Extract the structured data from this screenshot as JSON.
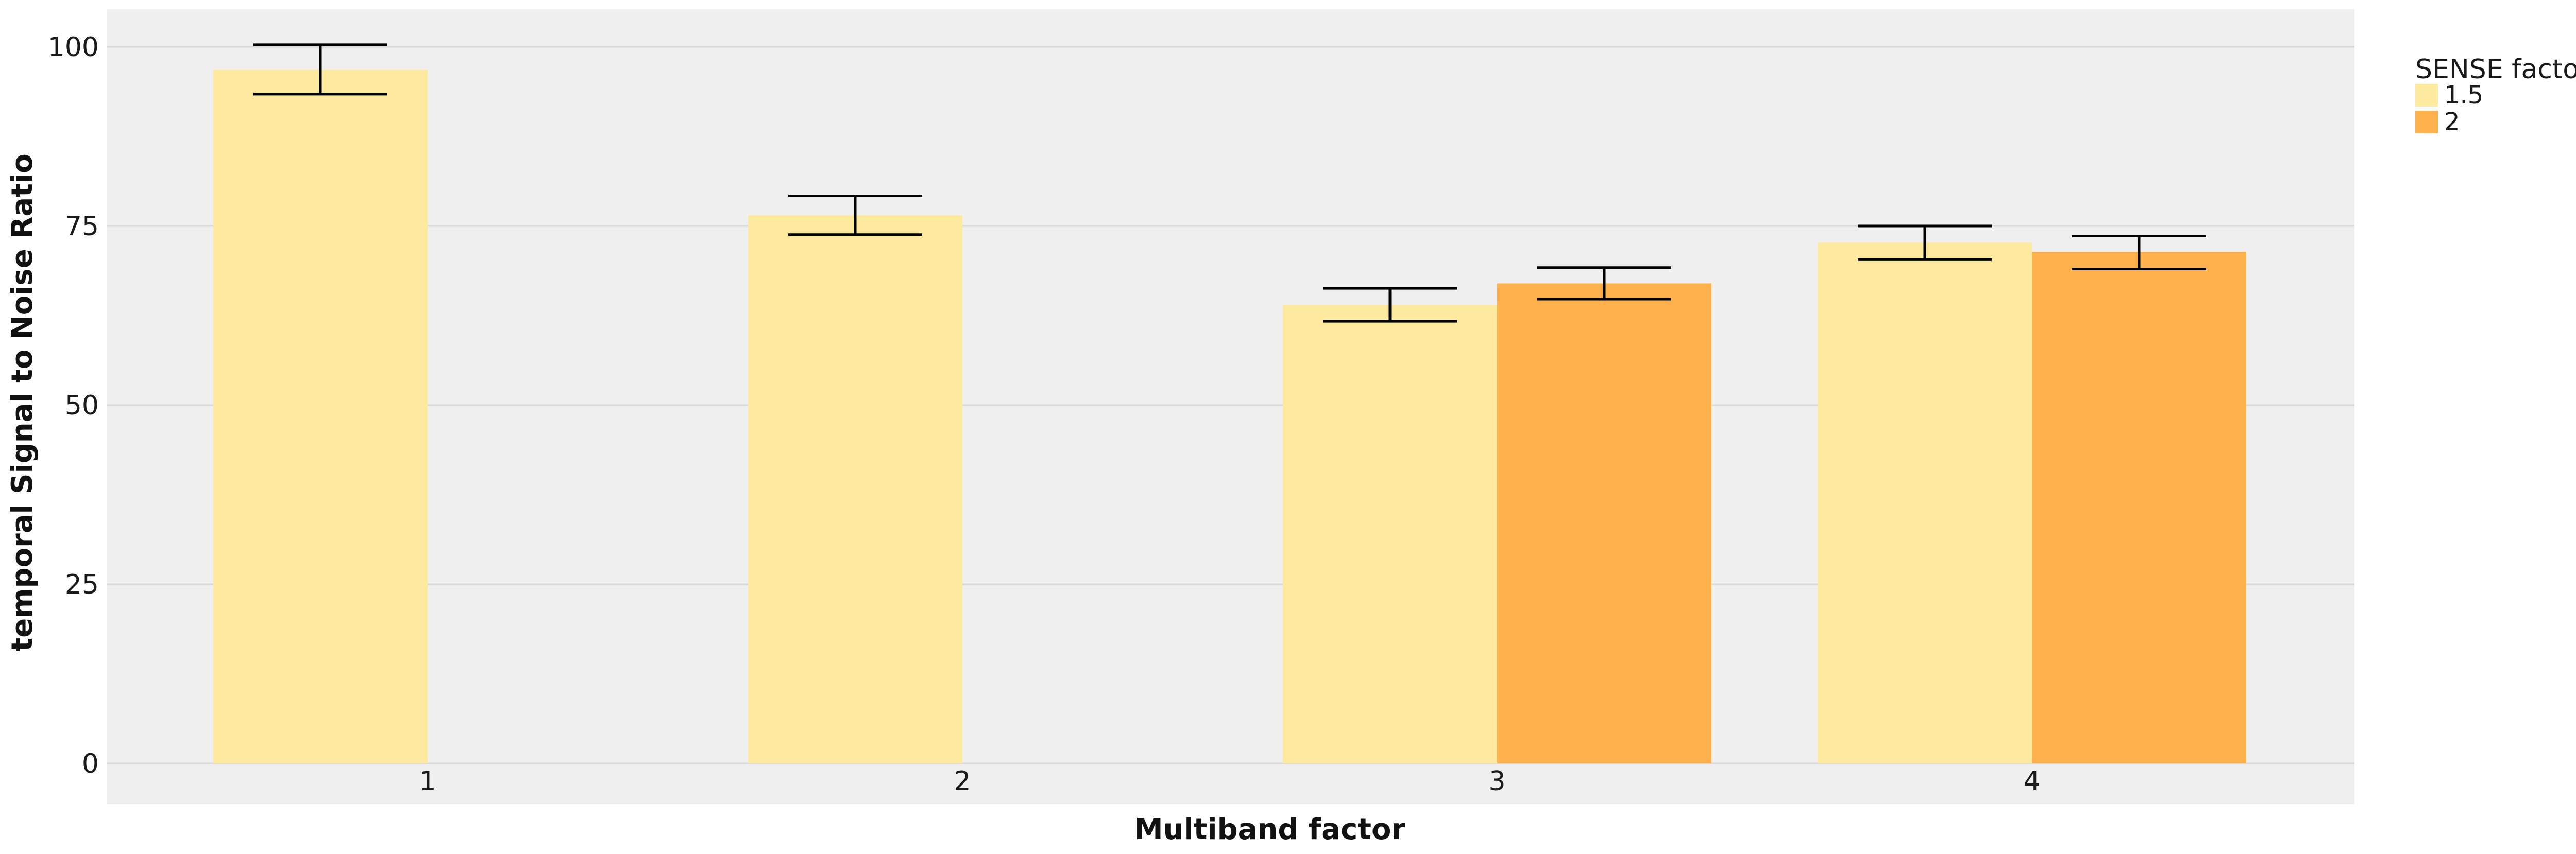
{
  "chart_data": {
    "type": "bar",
    "title": "",
    "xlabel": "Multiband factor",
    "ylabel": "temporal Signal to Noise Ratio",
    "categories": [
      "1",
      "2",
      "3",
      "4"
    ],
    "ylim": [
      0,
      105
    ],
    "yticks": [
      0,
      25,
      50,
      75,
      100
    ],
    "grid": true,
    "legend": {
      "title": "SENSE factor",
      "placement": "right"
    },
    "series": [
      {
        "name": "1.5",
        "color": "#FEEA9F",
        "values": [
          96.8,
          76.5,
          64.0,
          72.7
        ],
        "error_low": [
          93.4,
          73.8,
          61.7,
          70.3
        ],
        "error_high": [
          100.3,
          79.2,
          66.3,
          75.0
        ]
      },
      {
        "name": "2",
        "color": "#FDB14D",
        "values": [
          null,
          null,
          67.0,
          71.4
        ],
        "error_low": [
          null,
          null,
          64.8,
          69.0
        ],
        "error_high": [
          null,
          null,
          69.2,
          73.6
        ]
      }
    ],
    "colors": {
      "panel_background": "#EFEFEF",
      "gridline": "#D9D9D9",
      "error_bar": "#000000"
    }
  }
}
